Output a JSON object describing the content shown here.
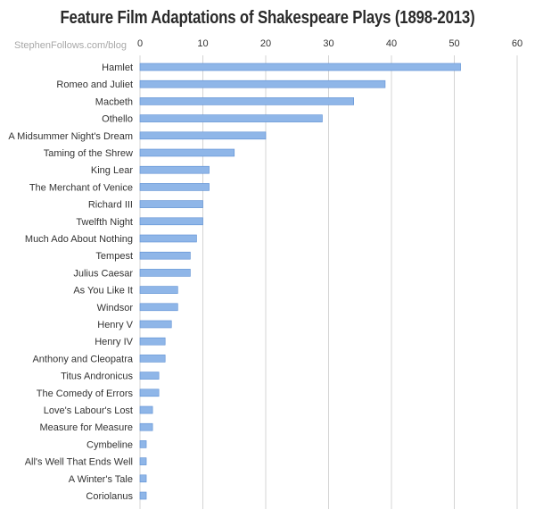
{
  "header": {
    "title": "Feature Film Adaptations of Shakespeare Plays (1898-2013)",
    "source": "StephenFollows.com/blog"
  },
  "colors": {
    "bar_fill": "#8fb6e8",
    "bar_stroke": "#5b8ed3",
    "axis_text": "#333333",
    "grid": "#d4d4d4"
  },
  "chart_data": {
    "type": "bar",
    "orientation": "horizontal",
    "title": "Feature Film Adaptations of Shakespeare Plays (1898-2013)",
    "xlabel": "",
    "ylabel": "",
    "xlim": [
      0,
      60
    ],
    "x_ticks": [
      0,
      10,
      20,
      30,
      40,
      50,
      60
    ],
    "axis_position": "top",
    "grid": true,
    "categories": [
      "Hamlet",
      "Romeo and Juliet",
      "Macbeth",
      "Othello",
      "A Midsummer Night's Dream",
      "Taming of the Shrew",
      "King Lear",
      "The Merchant of Venice",
      "Richard III",
      "Twelfth Night",
      "Much Ado About Nothing",
      "Tempest",
      "Julius Caesar",
      "As You Like It",
      "Windsor",
      "Henry V",
      "Henry IV",
      "Anthony and Cleopatra",
      "Titus Andronicus",
      "The Comedy of Errors",
      "Love's Labour's Lost",
      "Measure for Measure",
      "Cymbeline",
      "All's Well That Ends Well",
      "A Winter's Tale",
      "Coriolanus"
    ],
    "values": [
      51,
      39,
      34,
      29,
      20,
      15,
      11,
      11,
      10,
      10,
      9,
      8,
      8,
      6,
      6,
      5,
      4,
      4,
      3,
      3,
      2,
      2,
      1,
      1,
      1,
      1
    ]
  }
}
